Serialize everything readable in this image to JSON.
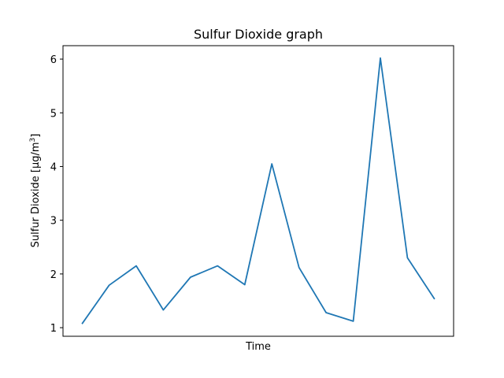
{
  "chart_data": {
    "type": "line",
    "title": "Sulfur Dioxide graph",
    "xlabel": "Time",
    "ylabel": "Sulfur Dioxide [µg/m",
    "ylabel_superscript": "3",
    "ylabel_suffix": "]",
    "yticks": [
      1,
      2,
      3,
      4,
      5,
      6
    ],
    "ytick_labels": [
      "1",
      "2",
      "3",
      "4",
      "5",
      "6"
    ],
    "ylim": [
      0.84,
      6.25
    ],
    "xlim": [
      -0.7,
      13.7
    ],
    "x_ticks_shown": false,
    "grid": false,
    "series": [
      {
        "color": "#1f77b4",
        "x": [
          0,
          1,
          2,
          3,
          4,
          5,
          6,
          7,
          8,
          9,
          10,
          11,
          12,
          13
        ],
        "values": [
          1.07,
          1.79,
          2.15,
          1.33,
          1.94,
          2.15,
          1.8,
          4.05,
          2.12,
          1.28,
          1.12,
          6.02,
          2.3,
          1.53
        ]
      }
    ]
  }
}
